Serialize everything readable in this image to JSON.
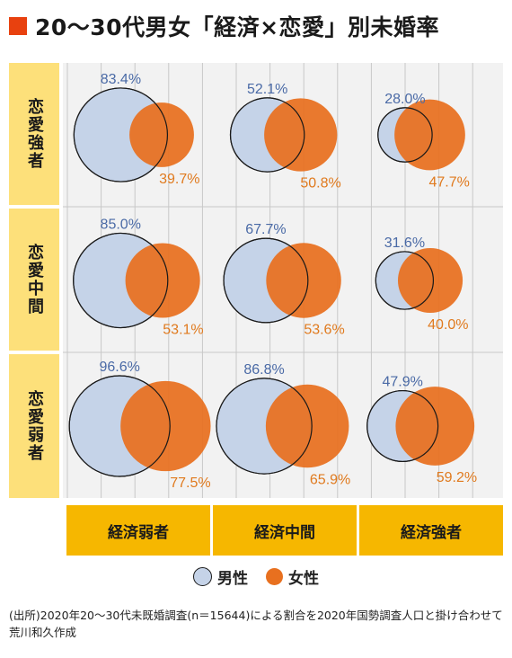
{
  "title": "20〜30代男女「経済×恋愛」別未婚率",
  "colors": {
    "accent": "#e8410f",
    "male_fill": "#c5d3e8",
    "male_stroke": "#1a1a1a",
    "female_fill": "#e8701f",
    "male_label": "#4a6aa6",
    "female_label": "#e07a1e",
    "row_label_bg": "#fde07a",
    "col_label_bg": "#f6b700",
    "plot_bg": "#f2f2f2"
  },
  "rows": [
    "恋愛強者",
    "恋愛中間",
    "恋愛弱者"
  ],
  "columns": [
    "経済弱者",
    "経済中間",
    "経済強者"
  ],
  "legend": {
    "male": "男性",
    "female": "女性"
  },
  "source": "(出所)2020年20〜30代未既婚調査(n＝15644)による割合を2020年国勢調査人口と掛け合わせて荒川和久作成",
  "chart_data": {
    "type": "bubble",
    "title": "20〜30代男女「経済×恋愛」別未婚率",
    "x_categories": [
      "経済弱者",
      "経済中間",
      "経済強者"
    ],
    "y_categories": [
      "恋愛強者",
      "恋愛中間",
      "恋愛弱者"
    ],
    "unit": "%",
    "series": [
      {
        "name": "男性",
        "values": [
          [
            83.4,
            52.1,
            28.0
          ],
          [
            85.0,
            67.7,
            31.6
          ],
          [
            96.6,
            86.8,
            47.9
          ]
        ],
        "labels": [
          [
            "83.4%",
            "52.1%",
            "28.0%"
          ],
          [
            "85.0%",
            "67.7%",
            "31.6%"
          ],
          [
            "96.6%",
            "86.8%",
            "47.9%"
          ]
        ]
      },
      {
        "name": "女性",
        "values": [
          [
            39.7,
            50.8,
            47.7
          ],
          [
            53.1,
            53.6,
            40.0
          ],
          [
            77.5,
            65.9,
            59.2
          ]
        ],
        "labels": [
          [
            "39.7%",
            "50.8%",
            "47.7%"
          ],
          [
            "53.1%",
            "53.6%",
            "40.0%"
          ],
          [
            "77.5%",
            "65.9%",
            "59.2%"
          ]
        ]
      }
    ],
    "grid": true,
    "legend_position": "bottom"
  }
}
